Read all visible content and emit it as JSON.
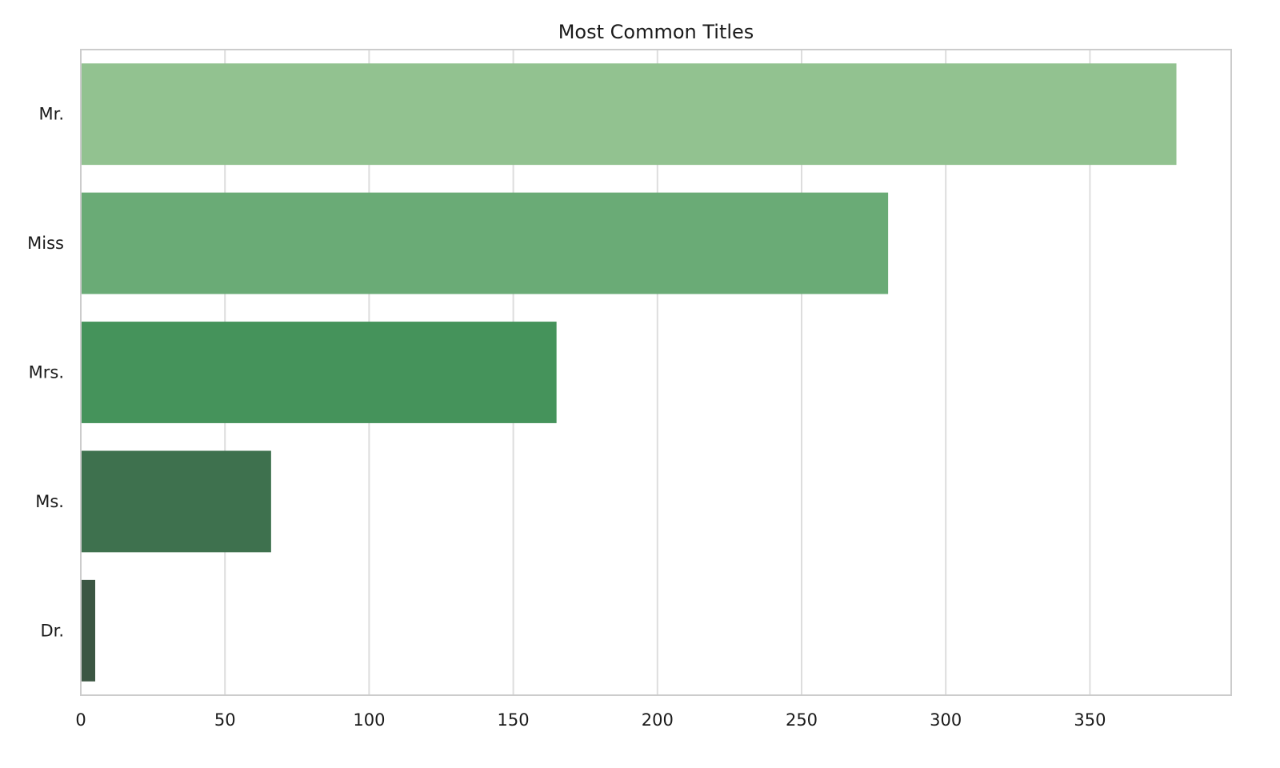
{
  "chart_data": {
    "type": "bar",
    "orientation": "horizontal",
    "title": "Most Common Titles",
    "xlabel": "",
    "ylabel": "",
    "categories": [
      "Mr.",
      "Miss",
      "Mrs.",
      "Ms.",
      "Dr."
    ],
    "values": [
      380,
      280,
      165,
      66,
      5
    ],
    "xlim": [
      0,
      399
    ],
    "xticks": [
      0,
      50,
      100,
      150,
      200,
      250,
      300,
      350
    ],
    "grid": true,
    "legend": "none",
    "colors": [
      "#92c290",
      "#6aab76",
      "#45935b",
      "#3e714e",
      "#3b5643"
    ]
  }
}
